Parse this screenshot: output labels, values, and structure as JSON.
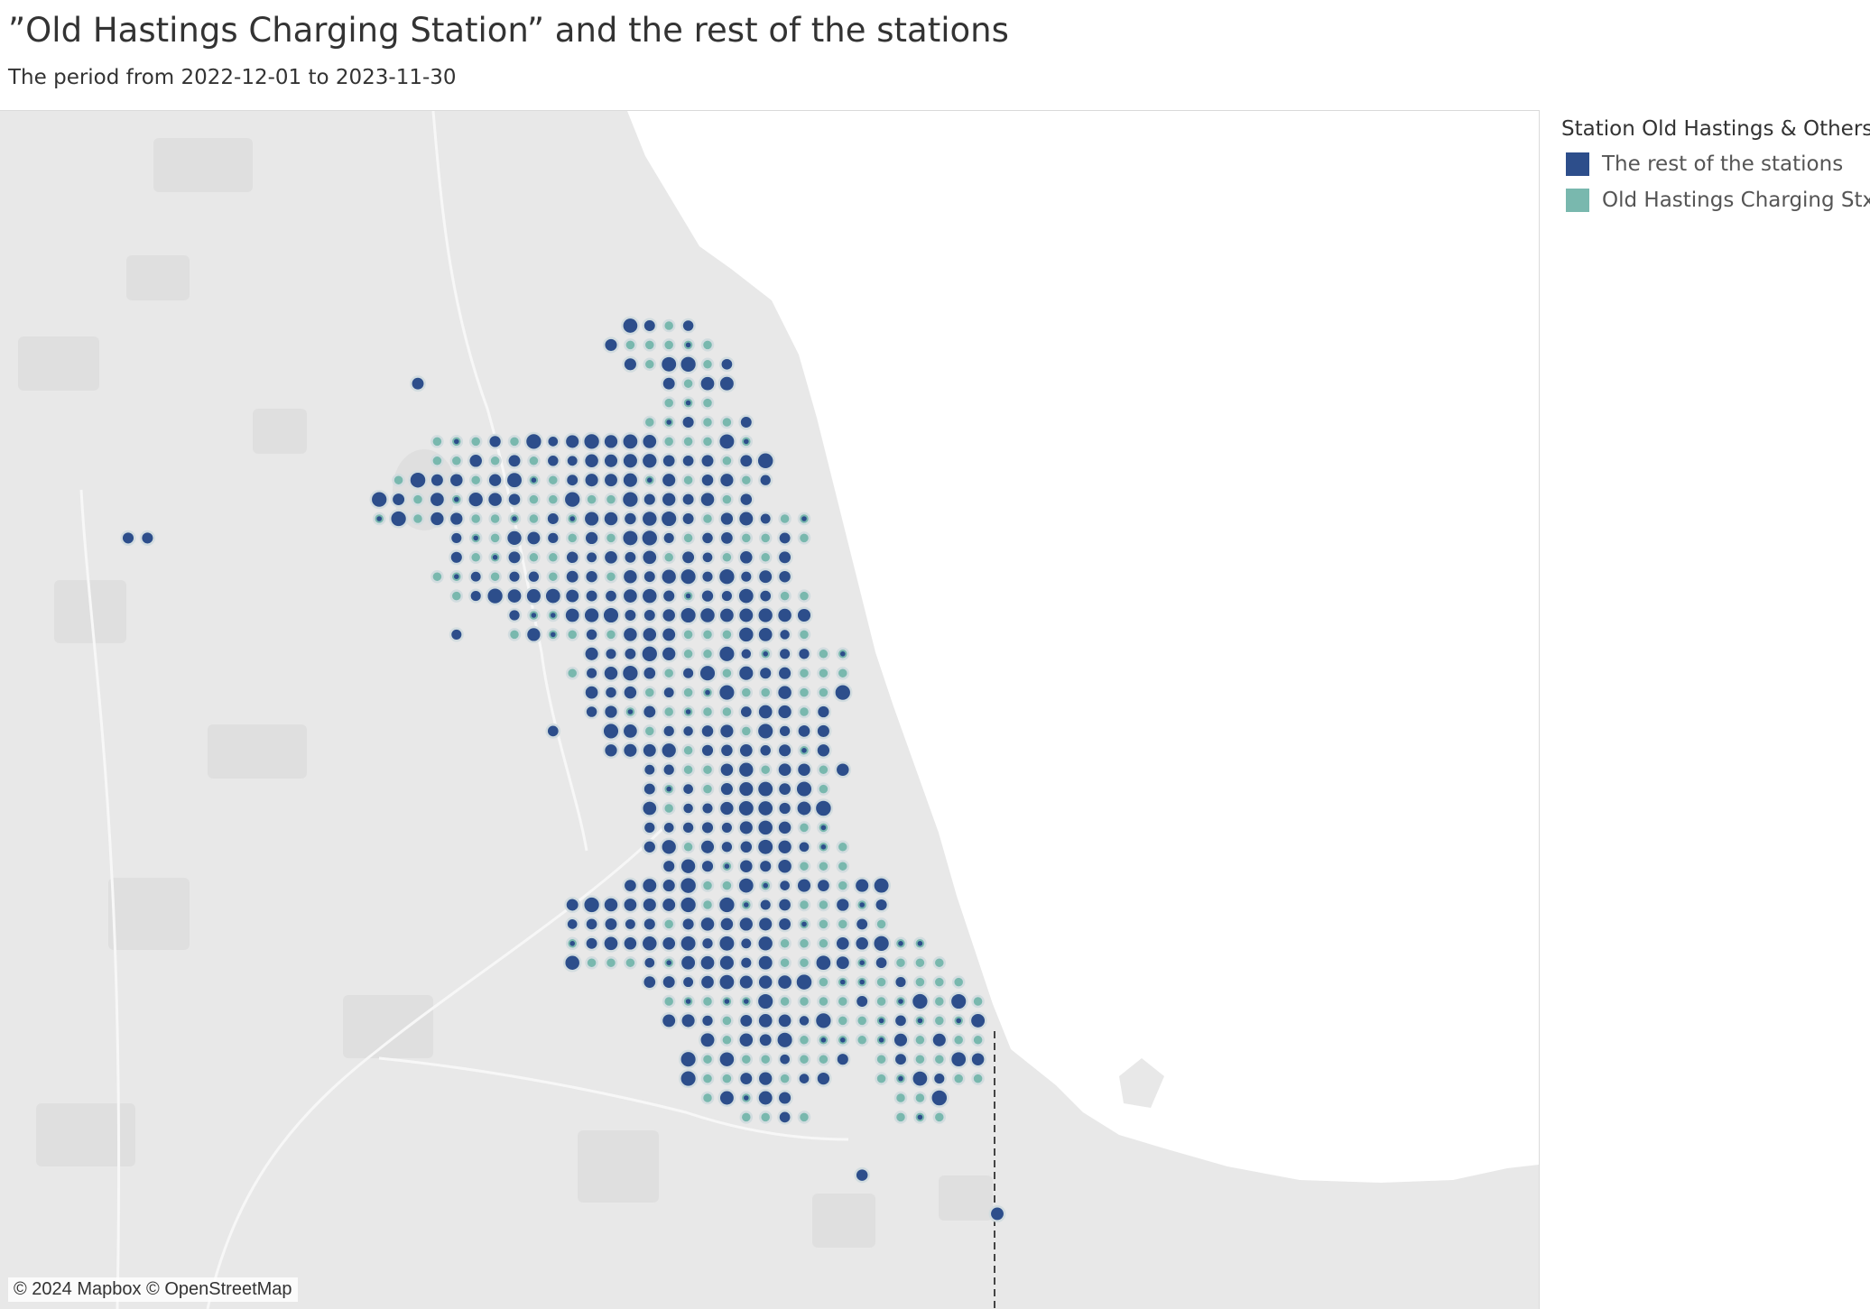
{
  "title": "”Old Hastings Charging Station” and the rest of the stations",
  "subtitle": "The period from 2022-12-01 to 2023-11-30",
  "legend": {
    "title": "Station Old Hastings & Others",
    "items": [
      {
        "label": "The rest of the stations",
        "color": "#2d4e8b"
      },
      {
        "label": "Old Hastings Charging Stx",
        "color": "#79b8ae"
      }
    ]
  },
  "attribution": "© 2024 Mapbox © OpenStreetMap",
  "colors": {
    "rest": "#2d4e8b",
    "old_hastings": "#79b8ae",
    "land": "#e8e8e8",
    "water": "#ffffff",
    "dot_outline": "#d2dcdf"
  }
}
